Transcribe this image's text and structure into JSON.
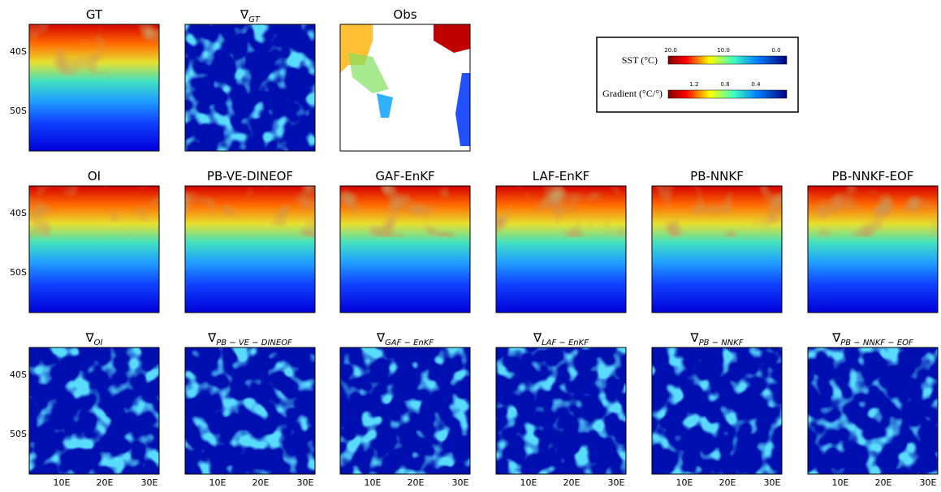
{
  "figure": {
    "rows": [
      [
        {
          "title": "GT"
        },
        {
          "title": "∇",
          "subscript": "GT"
        },
        {
          "title": "Obs"
        }
      ],
      [
        {
          "title": "OI"
        },
        {
          "title": "PB-VE-DINEOF"
        },
        {
          "title": "GAF-EnKF"
        },
        {
          "title": "LAF-EnKF"
        },
        {
          "title": "PB-NNKF"
        },
        {
          "title": "PB-NNKF-EOF"
        }
      ],
      [
        {
          "title": "∇",
          "subscript": "OI"
        },
        {
          "title": "∇",
          "subscript": "PB − VE − DINEOF"
        },
        {
          "title": "∇",
          "subscript": "GAF − EnKF"
        },
        {
          "title": "∇",
          "subscript": "LAF − EnKF"
        },
        {
          "title": "∇",
          "subscript": "PB − NNKF"
        },
        {
          "title": "∇",
          "subscript": "PB − NNKF − EOF"
        }
      ]
    ],
    "y_labels": [
      "40S",
      "50S"
    ],
    "x_labels": [
      "10E",
      "20E",
      "30E"
    ],
    "legend": {
      "sst": {
        "label": "SST (°C)",
        "ticks": [
          "20.0",
          "10.0",
          "0.0"
        ]
      },
      "gradient": {
        "label": "Gradient (°C/°)",
        "ticks": [
          "1.2",
          "0.8",
          "0.4"
        ]
      }
    }
  }
}
